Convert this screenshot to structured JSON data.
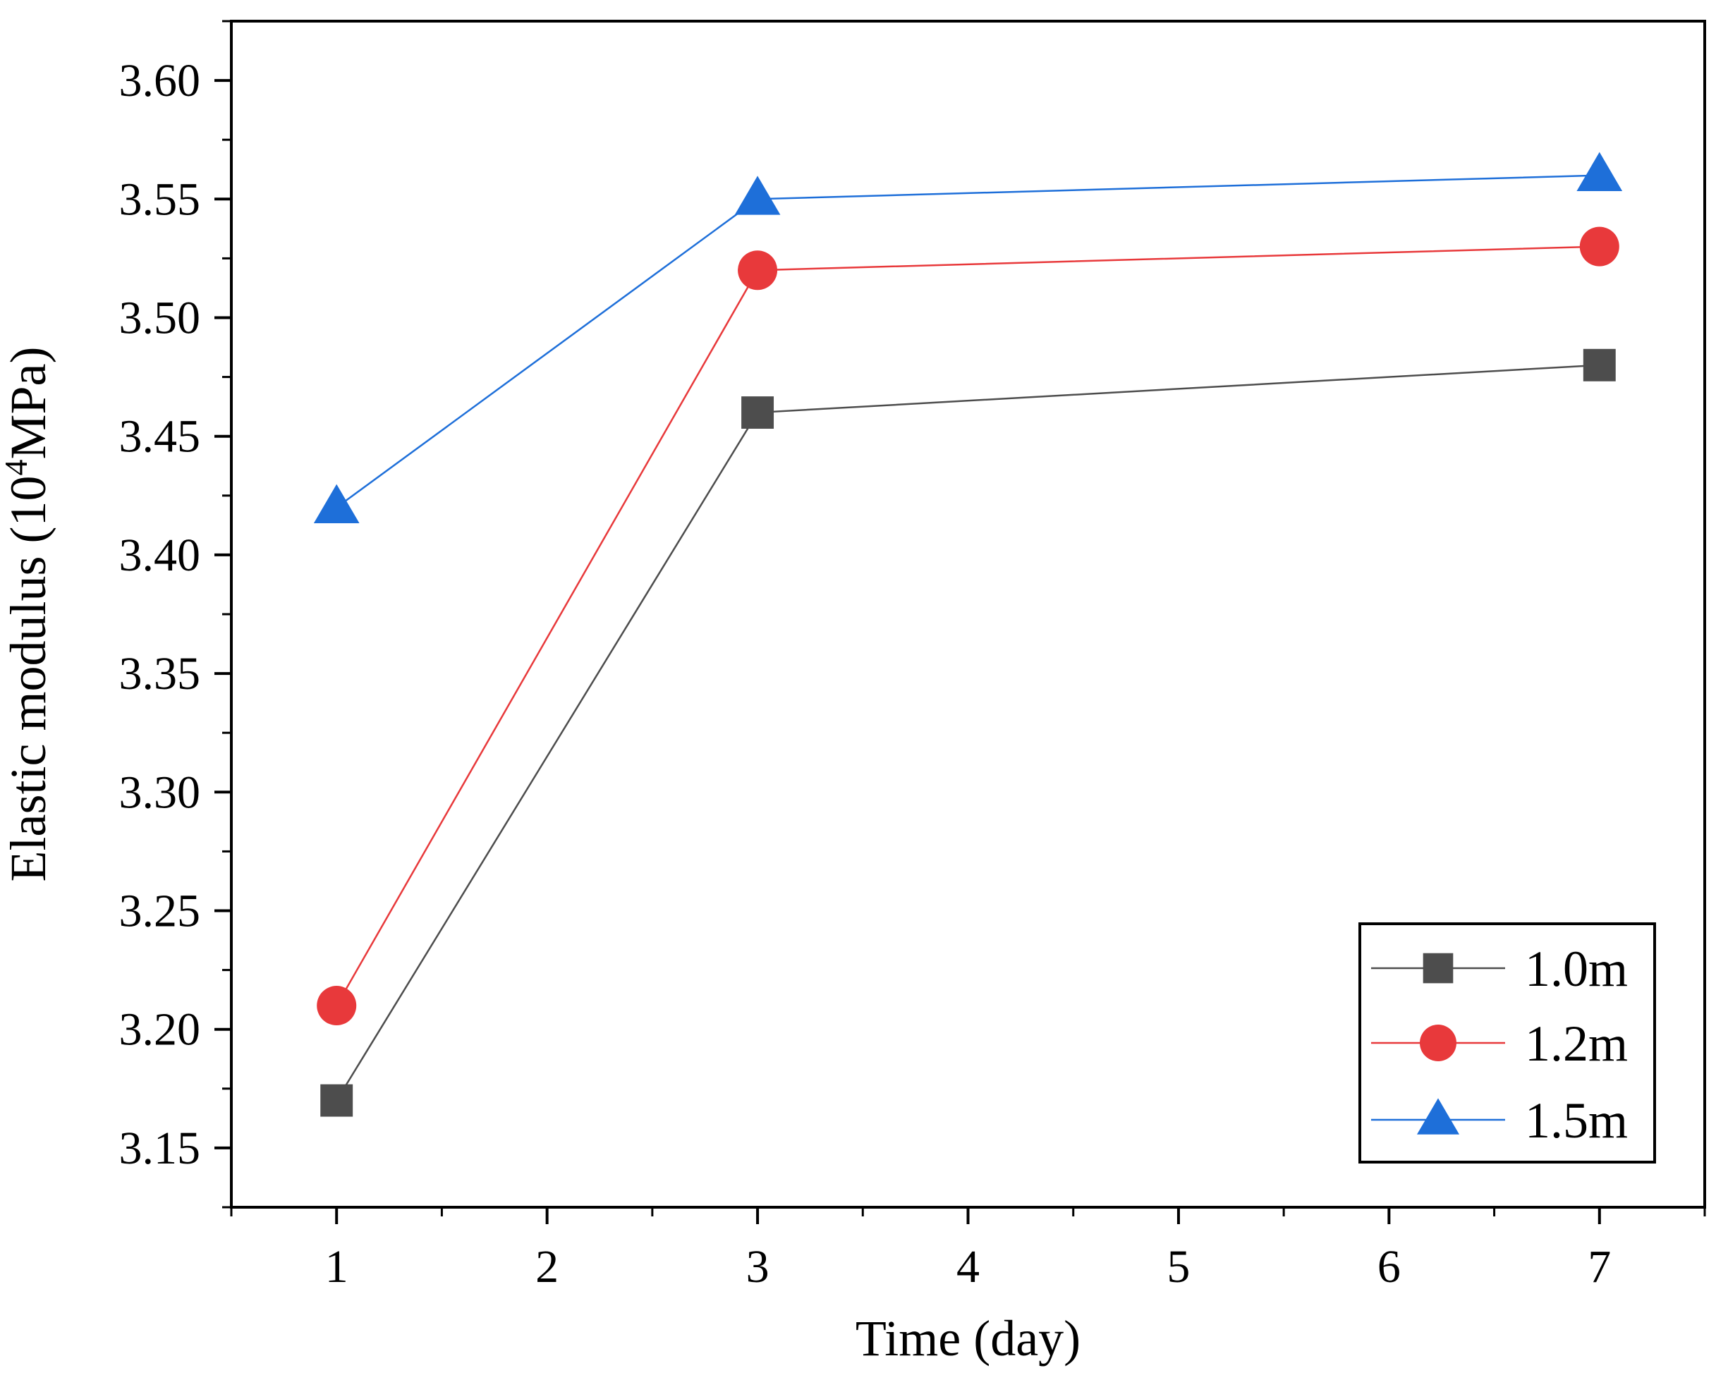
{
  "chart_data": {
    "type": "line",
    "title": "",
    "xlabel": "Time (day)",
    "ylabel": "Elastic modulus (10⁴MPa)",
    "ylabel_parts": {
      "prefix": "Elastic modulus (10",
      "superscript": "4",
      "suffix": "MPa)"
    },
    "xlim": [
      0.5,
      7.5
    ],
    "ylim": [
      3.125,
      3.625
    ],
    "x_ticks": [
      1,
      2,
      3,
      4,
      5,
      6,
      7
    ],
    "x_tick_labels": [
      "1",
      "2",
      "3",
      "4",
      "5",
      "6",
      "7"
    ],
    "y_ticks": [
      3.15,
      3.2,
      3.25,
      3.3,
      3.35,
      3.4,
      3.45,
      3.5,
      3.55,
      3.6
    ],
    "y_tick_labels": [
      "3.15",
      "3.20",
      "3.25",
      "3.30",
      "3.35",
      "3.40",
      "3.45",
      "3.50",
      "3.55",
      "3.60"
    ],
    "grid": false,
    "legend_position": "bottom-right",
    "series": [
      {
        "name": "1.0m",
        "x": [
          1,
          3,
          7
        ],
        "values": [
          3.17,
          3.46,
          3.48
        ],
        "marker": "square",
        "color": "#4d4d4d",
        "line_color": "#4d4d4d"
      },
      {
        "name": "1.2m",
        "x": [
          1,
          3,
          7
        ],
        "values": [
          3.21,
          3.52,
          3.53
        ],
        "marker": "circle",
        "color": "#e8393b",
        "line_color": "#e8393b"
      },
      {
        "name": "1.5m",
        "x": [
          1,
          3,
          7
        ],
        "values": [
          3.42,
          3.55,
          3.56
        ],
        "marker": "triangle",
        "color": "#1e6fd9",
        "line_color": "#1e6fd9"
      }
    ]
  }
}
